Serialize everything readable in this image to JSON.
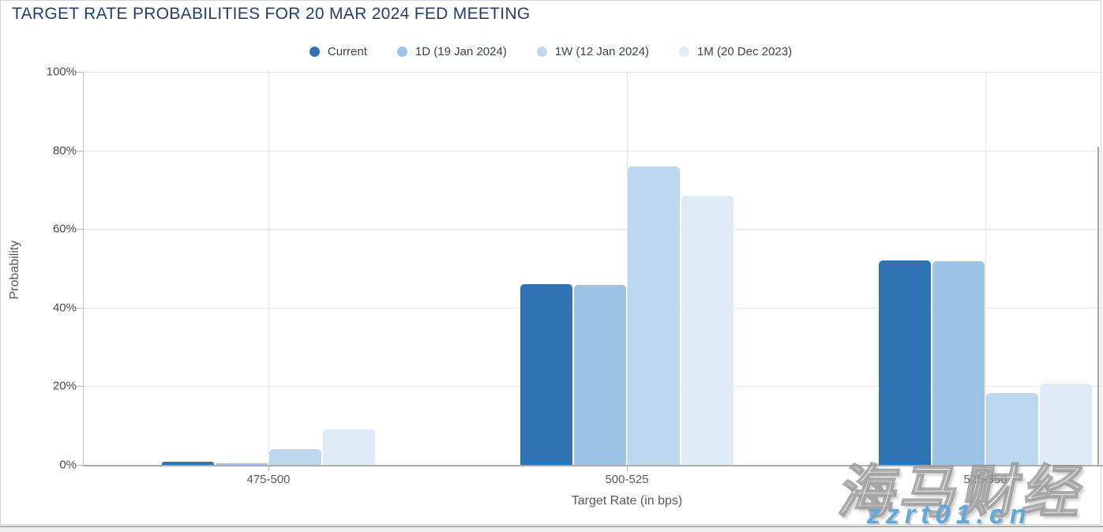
{
  "page": {
    "title": "TARGET RATE PROBABILITIES FOR 20 MAR 2024 FED MEETING"
  },
  "chart_data": {
    "type": "bar",
    "title": "TARGET RATE PROBABILITIES FOR 20 MAR 2024 FED MEETING",
    "categories": [
      "475-500",
      "500-525",
      "525-550"
    ],
    "series": [
      {
        "name": "Current",
        "color": "#2e74b5",
        "values": [
          0.8,
          46.0,
          52.0
        ]
      },
      {
        "name": "1D (19 Jan 2024)",
        "color": "#9dc3e6",
        "values": [
          0.5,
          45.7,
          51.8
        ]
      },
      {
        "name": "1W (12 Jan 2024)",
        "color": "#bdd7ee",
        "values": [
          4.0,
          76.0,
          18.3
        ]
      },
      {
        "name": "1M (20 Dec 2023)",
        "color": "#deeaf6",
        "values": [
          9.0,
          68.5,
          20.7
        ]
      }
    ],
    "xlabel": "Target Rate (in bps)",
    "ylabel": "Probability",
    "ylim": [
      0,
      100
    ],
    "yticks": [
      "0%",
      "20%",
      "40%",
      "60%",
      "80%",
      "100%"
    ],
    "grid": true,
    "legend_position": "top",
    "title_color": "#21406e",
    "axis_text_color": "#595959"
  },
  "watermark": {
    "brand": "海马财经",
    "site": "zzrt01.cn"
  }
}
